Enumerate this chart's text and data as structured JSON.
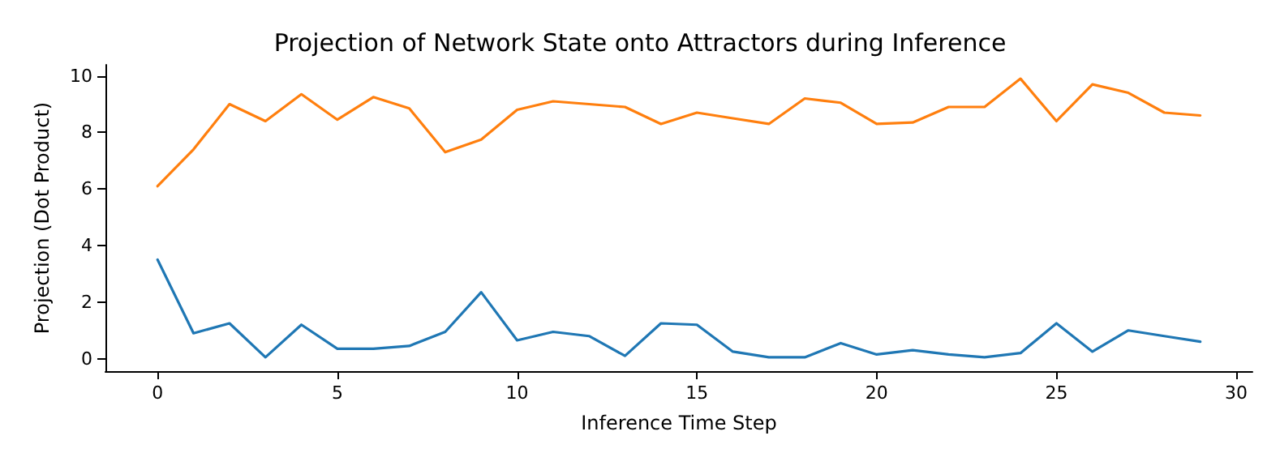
{
  "chart_data": {
    "type": "line",
    "title": "Projection of Network State onto Attractors during Inference",
    "xlabel": "Inference Time Step",
    "ylabel": "Projection (Dot Product)",
    "x": [
      0,
      1,
      2,
      3,
      4,
      5,
      6,
      7,
      8,
      9,
      10,
      11,
      12,
      13,
      14,
      15,
      16,
      17,
      18,
      19,
      20,
      21,
      22,
      23,
      24,
      25,
      26,
      27,
      28,
      29
    ],
    "series": [
      {
        "color": "#1f77b4",
        "values": [
          3.5,
          0.9,
          1.25,
          0.05,
          1.2,
          0.35,
          0.35,
          0.45,
          0.95,
          2.35,
          0.65,
          0.95,
          0.8,
          0.1,
          1.25,
          1.2,
          0.25,
          0.05,
          0.05,
          0.55,
          0.15,
          0.3,
          0.15,
          0.05,
          0.2,
          1.25,
          0.25,
          1.0,
          0.8,
          0.6
        ]
      },
      {
        "color": "#ff7f0e",
        "values": [
          6.1,
          7.4,
          9.0,
          8.4,
          9.35,
          8.45,
          9.25,
          8.85,
          7.3,
          7.75,
          8.8,
          9.1,
          9.0,
          8.9,
          8.3,
          8.7,
          8.5,
          8.3,
          9.2,
          9.05,
          8.3,
          8.35,
          8.9,
          8.9,
          9.9,
          8.4,
          9.7,
          9.4,
          8.7,
          8.6
        ]
      }
    ],
    "xlim": [
      -1.45,
      30.45
    ],
    "xticks": [
      0,
      5,
      10,
      15,
      20,
      25,
      30
    ],
    "ylim": [
      -0.44,
      10.39
    ],
    "yticks": [
      0,
      2,
      4,
      6,
      8,
      10
    ],
    "grid": false,
    "legend": false,
    "marker": "none",
    "line_style": "solid"
  }
}
